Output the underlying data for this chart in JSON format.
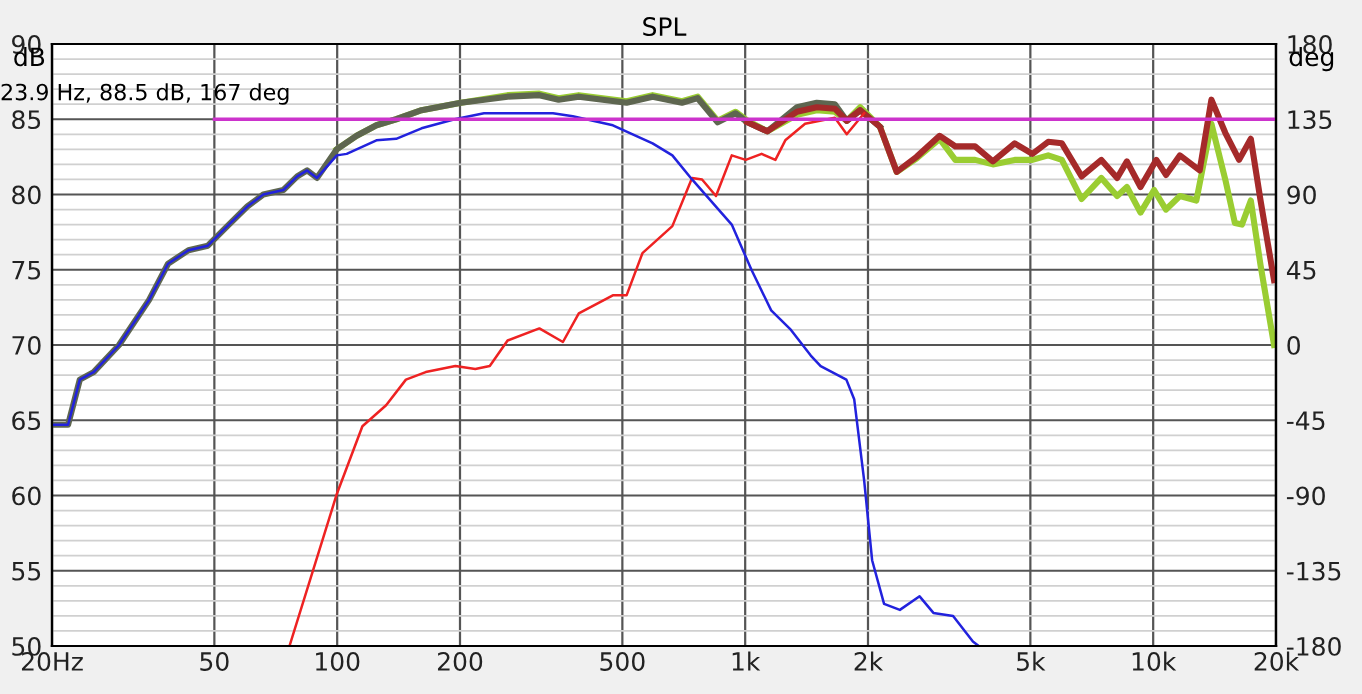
{
  "chart_data": {
    "type": "line",
    "title": "SPL",
    "ylabel": "dB",
    "y2label": "deg",
    "log": "x",
    "grid": true,
    "legend": false,
    "marker": "none",
    "line_style": "solid",
    "xlim": [
      20,
      20000
    ],
    "xticks": [
      {
        "value": 20,
        "label": "20Hz"
      },
      50,
      100,
      200,
      500,
      {
        "value": 1000,
        "label": "1k"
      },
      {
        "value": 2000,
        "label": "2k"
      },
      {
        "value": 5000,
        "label": "5k"
      },
      {
        "value": 10000,
        "label": "10k"
      },
      {
        "value": 20000,
        "label": "20k"
      }
    ],
    "ylim": [
      50,
      90
    ],
    "yticks": [
      50,
      55,
      60,
      65,
      70,
      75,
      80,
      85,
      90
    ],
    "y2lim": [
      -180,
      180
    ],
    "y2ticks": [
      -180,
      -135,
      -90,
      -45,
      0,
      45,
      90,
      135,
      180
    ],
    "annotations": [
      "23.9 Hz, 88.5 dB, 167 deg"
    ],
    "series": [
      {
        "color": "#9acd32",
        "x": [
          99.8,
          111.6,
          124.8,
          139.5,
          161,
          201,
          261.6,
          313,
          349,
          391,
          512,
          593,
          700,
          765,
          856,
          947,
          1013,
          1133,
          1340,
          1498,
          1659,
          1774,
          1914,
          2139,
          2352,
          2630,
          2996,
          3274,
          3660,
          4047,
          4576,
          5058,
          5528,
          5972,
          6678,
          7465,
          8160,
          8622,
          9310,
          10050,
          10750,
          11630,
          12760,
          13890,
          15020,
          15860,
          16500,
          17350,
          18330,
          19780
        ],
        "values": [
          83,
          83.9,
          84.6,
          85,
          85.6,
          86.1,
          86.6,
          86.7,
          86.4,
          86.6,
          86.2,
          86.6,
          86.2,
          86.5,
          84.9,
          85.5,
          84.9,
          84.2,
          85.3,
          85.6,
          85.5,
          84.9,
          85.8,
          84.5,
          81.5,
          82.4,
          83.7,
          82.3,
          82.3,
          82,
          82.3,
          82.3,
          82.6,
          82.3,
          79.7,
          81.1,
          79.9,
          80.5,
          78.8,
          80.3,
          79,
          79.9,
          79.6,
          84.7,
          81,
          78.1,
          78,
          79.6,
          75.3,
          70
        ]
      },
      {
        "color": "#5e6650",
        "x": [
          20,
          21.9,
          23.4,
          25.3,
          29.2,
          34.6,
          38.5,
          43.2,
          48.2,
          53.8,
          60.2,
          65.9,
          73.8,
          79.8,
          84.4,
          89.2,
          99.8,
          111.6,
          124.8,
          139.5,
          161,
          201,
          261.6,
          313,
          349,
          391,
          512,
          593,
          700,
          765,
          856,
          947,
          1013,
          1133,
          1340,
          1498,
          1659,
          1774,
          1914,
          2139
        ],
        "values": [
          64.7,
          64.7,
          67.7,
          68.2,
          70,
          73,
          75.4,
          76.3,
          76.6,
          77.9,
          79.2,
          80,
          80.3,
          81.2,
          81.6,
          81.1,
          83,
          83.9,
          84.6,
          85,
          85.6,
          86.1,
          86.5,
          86.6,
          86.3,
          86.5,
          86.1,
          86.5,
          86.1,
          86.4,
          84.8,
          85.4,
          84.8,
          84.2,
          85.8,
          86.1,
          86,
          84.9,
          85.6,
          84.5
        ]
      },
      {
        "color": "#a52a2a",
        "x": [
          1013,
          1133,
          1340,
          1498,
          1659,
          1774,
          1914,
          2139,
          2352,
          2630,
          2996,
          3274,
          3660,
          4047,
          4576,
          5058,
          5528,
          5972,
          6678,
          7465,
          8160,
          8622,
          9310,
          10180,
          10750,
          11630,
          13000,
          13890,
          15020,
          16240,
          17350,
          18330,
          19780
        ],
        "values": [
          84.8,
          84.2,
          85.5,
          85.8,
          85.7,
          84.9,
          85.6,
          84.5,
          81.5,
          82.5,
          83.9,
          83.2,
          83.2,
          82.2,
          83.4,
          82.7,
          83.5,
          83.4,
          81.2,
          82.3,
          81.1,
          82.2,
          80.5,
          82.3,
          81.3,
          82.6,
          81.6,
          86.3,
          84.1,
          82.3,
          83.7,
          79.6,
          74.3
        ]
      },
      {
        "color": "#ee2222",
        "x": [
          76.4,
          99.8,
          115.3,
          131.8,
          147.4,
          164.8,
          194.9,
          218,
          236.6,
          261.6,
          313,
          357.5,
          391,
          473.8,
          512,
          560,
          663,
          741,
          784,
          848,
          927,
          1003,
          1097,
          1186,
          1254,
          1402,
          1659,
          1774,
          1957
        ],
        "values": [
          50,
          60.1,
          64.6,
          66,
          67.7,
          68.2,
          68.6,
          68.4,
          68.6,
          70.3,
          71.1,
          70.2,
          72.1,
          73.3,
          73.3,
          76.1,
          77.9,
          81.1,
          81,
          79.9,
          82.6,
          82.3,
          82.7,
          82.3,
          83.6,
          84.7,
          85.1,
          84,
          85.4
        ]
      },
      {
        "color": "#2222dd",
        "x": [
          20,
          21.9,
          23.4,
          25.3,
          29.2,
          34.6,
          38.5,
          43.2,
          48.2,
          53.8,
          60.2,
          65.9,
          73.8,
          79.8,
          84.4,
          89.2,
          99.8,
          105.5,
          124.8,
          139.5,
          161,
          194,
          229,
          270,
          338,
          378,
          474,
          530,
          593,
          663,
          741,
          927,
          1036,
          1158,
          1295,
          1448,
          1531,
          1770,
          1850,
          1957,
          2047,
          2190,
          2394,
          2676,
          2893,
          3233,
          3615,
          3735
        ],
        "values": [
          64.7,
          64.7,
          67.7,
          68.2,
          70,
          73,
          75.4,
          76.3,
          76.6,
          77.9,
          79.2,
          80,
          80.3,
          81.2,
          81.6,
          81.1,
          82.6,
          82.7,
          83.6,
          83.7,
          84.4,
          85,
          85.4,
          85.4,
          85.4,
          85.2,
          84.6,
          84,
          83.4,
          82.6,
          81,
          78,
          75,
          72.3,
          71,
          69.3,
          68.6,
          67.7,
          66.4,
          61,
          55.7,
          52.8,
          52.4,
          53.3,
          52.2,
          52,
          50.3,
          50
        ]
      },
      {
        "color": "#cc33cc",
        "x": [
          50,
          20000
        ],
        "values": [
          85,
          85
        ]
      }
    ]
  }
}
